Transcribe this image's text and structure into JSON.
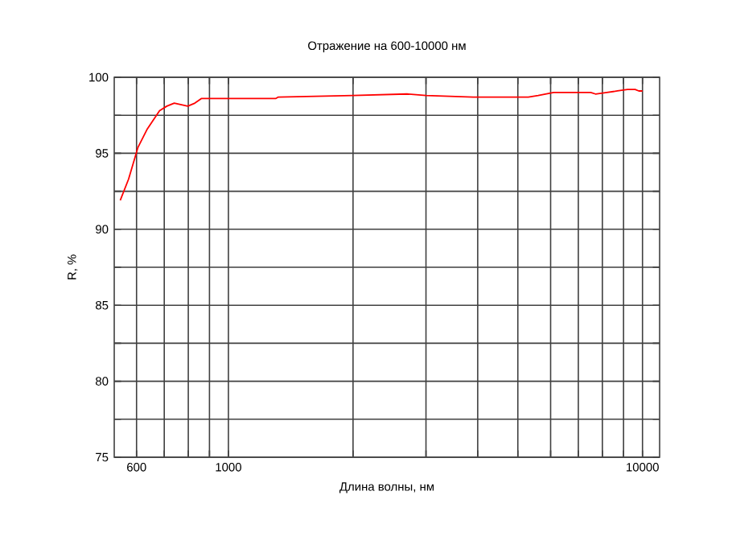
{
  "chart_data": {
    "type": "line",
    "title": "Отражение на 600-10000 нм",
    "xlabel": "Длина волны, нм",
    "ylabel": "R, %",
    "log": "x",
    "grid": true,
    "xlim": [
      530,
      11000
    ],
    "ylim": [
      75,
      100
    ],
    "xticks": [
      600,
      {
        "value": 700,
        "label": null
      },
      {
        "value": 800,
        "label": null
      },
      {
        "value": 900,
        "label": null
      },
      1000,
      {
        "value": 2000,
        "label": null
      },
      {
        "value": 3000,
        "label": null
      },
      {
        "value": 4000,
        "label": null
      },
      {
        "value": 5000,
        "label": null
      },
      {
        "value": 6000,
        "label": null
      },
      {
        "value": 7000,
        "label": null
      },
      {
        "value": 8000,
        "label": null
      },
      {
        "value": 9000,
        "label": null
      },
      10000
    ],
    "yticks": [
      75,
      {
        "value": 77.5,
        "label": null
      },
      80,
      {
        "value": 82.5,
        "label": null
      },
      85,
      {
        "value": 87.5,
        "label": null
      },
      90,
      {
        "value": 92.5,
        "label": null
      },
      95,
      {
        "value": 97.5,
        "label": null
      },
      100
    ],
    "series": [
      {
        "color": "#ff0000",
        "x": [
          548,
          574,
          605,
          637,
          682,
          710,
          740,
          798,
          830,
          860,
          1300,
          1320,
          2000,
          2700,
          3000,
          3900,
          5300,
          5600,
          6100,
          7500,
          7700,
          8200,
          8700,
          9200,
          9600,
          9800,
          10000
        ],
        "values": [
          91.9,
          93.3,
          95.4,
          96.6,
          97.8,
          98.1,
          98.3,
          98.1,
          98.3,
          98.6,
          98.6,
          98.7,
          98.8,
          98.9,
          98.8,
          98.7,
          98.7,
          98.8,
          99.0,
          99.0,
          98.9,
          99.0,
          99.1,
          99.2,
          99.2,
          99.1,
          99.1
        ]
      }
    ]
  }
}
